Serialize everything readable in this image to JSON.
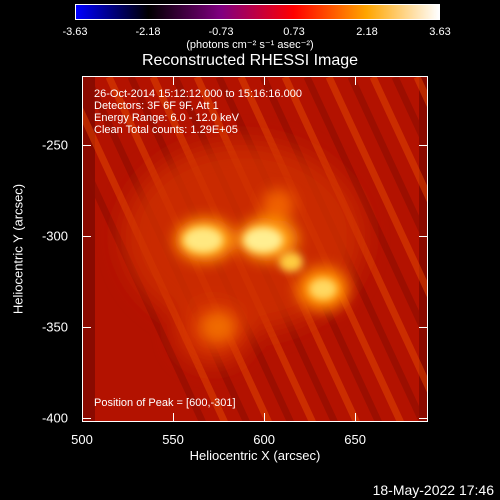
{
  "colorbar": {
    "ticks": [
      "-3.63",
      "-2.18",
      "-0.73",
      "0.73",
      "2.18",
      "3.63"
    ],
    "units": "(photons cm⁻² s⁻¹ asec⁻²)",
    "colors": [
      "#0000ff",
      "#000000",
      "#800080",
      "#ff0000",
      "#ffa500",
      "#ffffff"
    ]
  },
  "title": "Reconstructed RHESSI Image",
  "info": {
    "time_range": "26-Oct-2014 15:12:12.000 to 15:16:16.000",
    "detectors": "Detectors: 3F 6F 9F, Att 1",
    "energy": "Energy Range: 6.0 - 12.0 keV",
    "clean": "Clean    Total counts: 1.29E+05",
    "peak": "Position of Peak = [600,-301]"
  },
  "axes": {
    "xlabel": "Heliocentric X (arcsec)",
    "ylabel": "Heliocentric Y (arcsec)",
    "x_ticks": [
      "500",
      "550",
      "600",
      "650"
    ],
    "y_ticks": [
      "-250",
      "-300",
      "-350",
      "-400"
    ],
    "xlim": [
      500,
      690
    ],
    "ylim": [
      -402,
      -212
    ]
  },
  "timestamp": "18-May-2022 17:46"
}
